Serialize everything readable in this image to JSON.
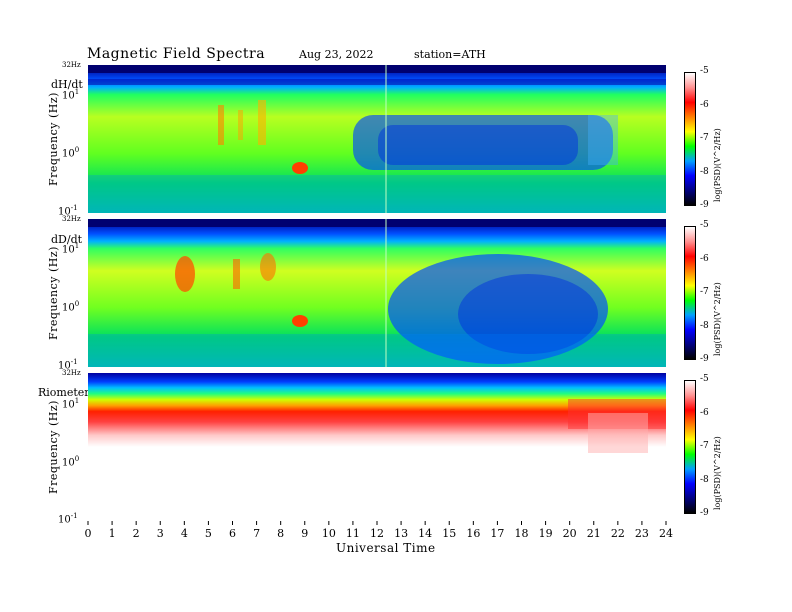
{
  "header": {
    "title": "Magnetic  Field  Spectra",
    "date": "Aug 23, 2022",
    "station": "station=ATH"
  },
  "panels": [
    {
      "label": "dH/dt",
      "ylabel": "Frequency  (Hz)",
      "top_tick": "32Hz"
    },
    {
      "label": "dD/dt",
      "ylabel": "Frequency  (Hz)",
      "top_tick": "32Hz"
    },
    {
      "label": "Riometer",
      "ylabel": "Frequency  (Hz)",
      "top_tick": "32Hz"
    }
  ],
  "colorbar": {
    "ticks": [
      "-5",
      "-6",
      "-7",
      "-8",
      "-9"
    ],
    "label": "log(PSD)(V^2/Hz)",
    "colors": [
      "#ffffff",
      "#ff9090",
      "#ff0000",
      "#ff8000",
      "#ffff00",
      "#00ff00",
      "#00a0ff",
      "#0000ff",
      "#000080",
      "#000000"
    ]
  },
  "chart_data": {
    "type": "heatmap",
    "xlabel": "Universal Time",
    "x_ticks": [
      "0",
      "1",
      "2",
      "3",
      "4",
      "5",
      "6",
      "7",
      "8",
      "9",
      "10",
      "11",
      "12",
      "13",
      "14",
      "15",
      "16",
      "17",
      "18",
      "19",
      "20",
      "21",
      "22",
      "23",
      "24"
    ],
    "xlim": [
      0,
      24
    ],
    "y_scale": "log",
    "ylim": [
      0.1,
      32
    ],
    "y_ticks": [
      {
        "base": "10",
        "exp": "1"
      },
      {
        "base": "10",
        "exp": "0"
      },
      {
        "base": "10",
        "exp": "-1"
      }
    ],
    "colorscale_range": [
      -9,
      -5
    ]
  }
}
